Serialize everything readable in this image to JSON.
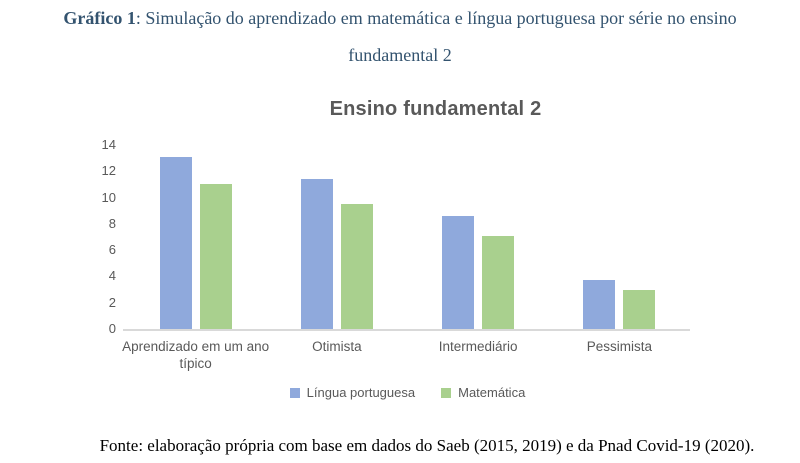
{
  "doc_title": {
    "bold": "Gráfico 1",
    "rest": ": Simulação do aprendizado em matemática e língua portuguesa por série no ensino",
    "line2": "fundamental 2"
  },
  "chart_data": {
    "type": "bar",
    "title": "Ensino fundamental 2",
    "categories": [
      "Aprendizado em um ano\ntípico",
      "Otimista",
      "Intermediário",
      "Pessimista"
    ],
    "series": [
      {
        "name": "Língua portuguesa",
        "color": "#8FA9DC",
        "values": [
          13.1,
          11.4,
          8.6,
          3.7
        ]
      },
      {
        "name": "Matemática",
        "color": "#A9D08E",
        "values": [
          11,
          9.5,
          7.1,
          3
        ]
      }
    ],
    "xlabel": "",
    "ylabel": "",
    "ylim": [
      0,
      14
    ],
    "yticks": [
      0,
      2,
      4,
      6,
      8,
      10,
      12,
      14
    ],
    "grid": false,
    "legend_position": "bottom"
  },
  "source": "Fonte: elaboração própria com base em dados do Saeb (2015, 2019) e da Pnad Covid-19 (2020).",
  "colors": {
    "doc_title_text": "#33536F",
    "chart_text": "#595959",
    "axis_line": "#D9D9D9",
    "source_text": "#000000"
  }
}
